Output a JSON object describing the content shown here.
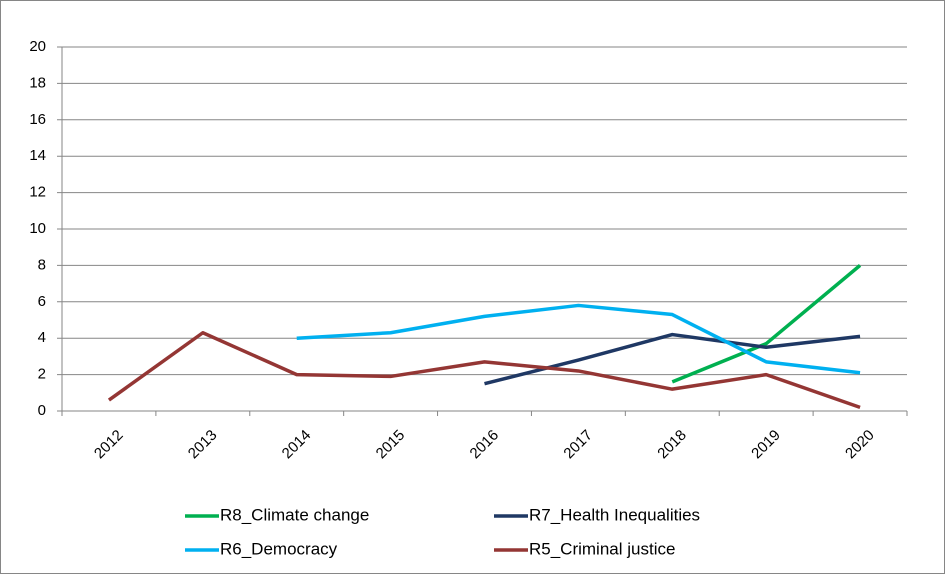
{
  "chart_data": {
    "type": "line",
    "categories": [
      "2012",
      "2013",
      "2014",
      "2015",
      "2016",
      "2017",
      "2018",
      "2019",
      "2020"
    ],
    "series": [
      {
        "name": "R8_Climate change",
        "color": "#00b050",
        "values": [
          null,
          null,
          null,
          null,
          null,
          null,
          1.6,
          3.7,
          8.0
        ]
      },
      {
        "name": "R7_Health Inequalities",
        "color": "#1f3864",
        "values": [
          null,
          null,
          null,
          null,
          1.5,
          2.8,
          4.2,
          3.5,
          4.1
        ]
      },
      {
        "name": "R6_Democracy",
        "color": "#00b0f0",
        "values": [
          null,
          null,
          4.0,
          4.3,
          5.2,
          5.8,
          5.3,
          2.7,
          2.1
        ]
      },
      {
        "name": "R5_Criminal justice",
        "color": "#943634",
        "values": [
          0.6,
          4.3,
          2.0,
          1.9,
          2.7,
          2.2,
          1.2,
          2.0,
          0.2
        ]
      }
    ],
    "ylim": [
      0,
      20
    ],
    "yticks": [
      0,
      2,
      4,
      6,
      8,
      10,
      12,
      14,
      16,
      18,
      20
    ],
    "grid": true,
    "legend": "bottom"
  }
}
